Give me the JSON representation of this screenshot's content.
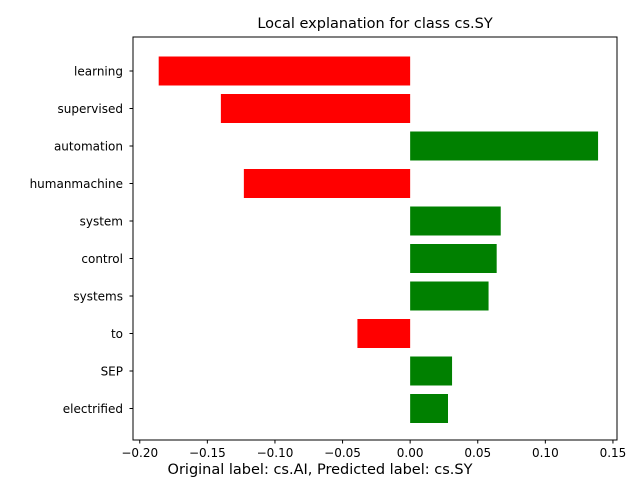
{
  "chart_data": {
    "type": "bar",
    "orientation": "horizontal",
    "title": "Local explanation for class cs.SY",
    "caption": "Original label: cs.AI, Predicted label: cs.SY",
    "categories": [
      "learning",
      "supervised",
      "automation",
      "humanmachine",
      "system",
      "control",
      "systems",
      "to",
      "SEP",
      "electrified"
    ],
    "values": [
      -0.186,
      -0.14,
      0.139,
      -0.123,
      0.067,
      0.064,
      0.058,
      -0.039,
      0.031,
      0.028
    ],
    "xlim": [
      -0.205,
      0.153
    ],
    "xticks": [
      -0.2,
      -0.15,
      -0.1,
      -0.05,
      0.0,
      0.05,
      0.1,
      0.15
    ],
    "xtick_labels": [
      "−0.20",
      "−0.15",
      "−0.10",
      "−0.05",
      "0.00",
      "0.05",
      "0.10",
      "0.15"
    ],
    "colors": {
      "positive": "#008000",
      "negative": "#ff0000"
    },
    "grid": false,
    "xlabel": "",
    "ylabel": ""
  }
}
